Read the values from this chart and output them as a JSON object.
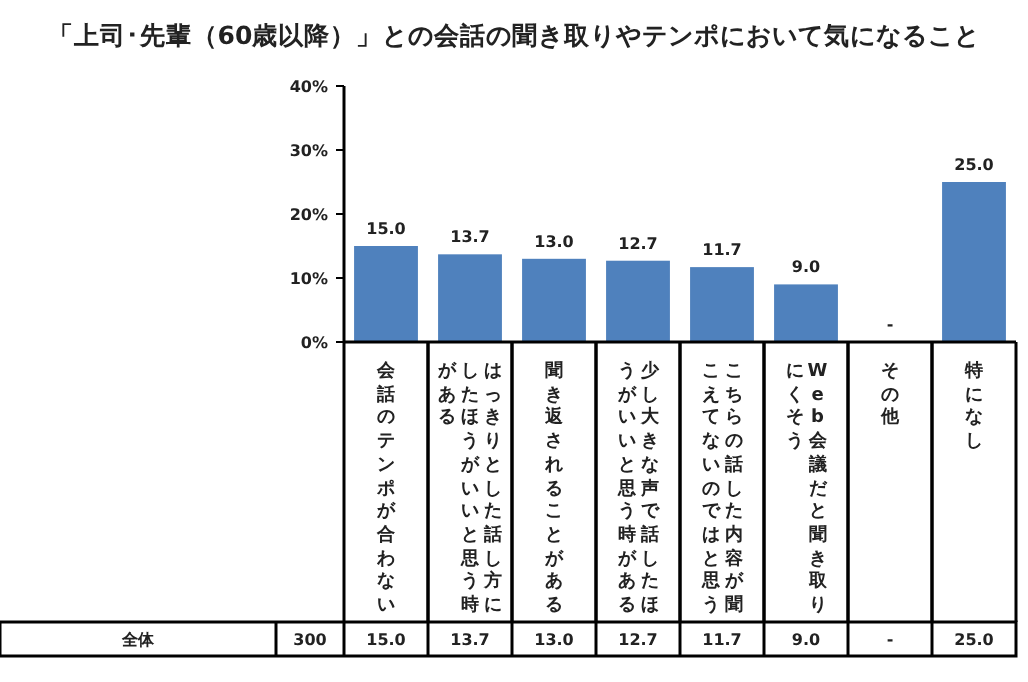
{
  "chart_data": {
    "type": "bar",
    "title": "「上司･先輩（60歳以降）」との会話の聞き取りやテンポにおいて気になること",
    "categories": [
      "会話のテンポが合わない",
      "はっきりとした話し方にしたほうがいいと思う時がある",
      "聞き返されることがある",
      "少し大きな声で話したほうがいいと思う時がある",
      "こちらの話した内容が聞こえてないのではと思う",
      "Web会議だと聞き取りにくそう",
      "その他",
      "特になし"
    ],
    "values": [
      15.0,
      13.7,
      13.0,
      12.7,
      11.7,
      9.0,
      0,
      25.0
    ],
    "value_labels": [
      "15.0",
      "13.7",
      "13.0",
      "12.7",
      "11.7",
      "9.0",
      "-",
      "25.0"
    ],
    "color": "#4f81bd",
    "ylim": [
      0,
      40
    ],
    "yticks": [
      {
        "value": 0,
        "label": "0%"
      },
      {
        "value": 10,
        "label": "10%"
      },
      {
        "value": 20,
        "label": "20%"
      },
      {
        "value": 30,
        "label": "30%"
      },
      {
        "value": 40,
        "label": "40%"
      }
    ],
    "annotations": [
      "全体",
      "300"
    ]
  }
}
